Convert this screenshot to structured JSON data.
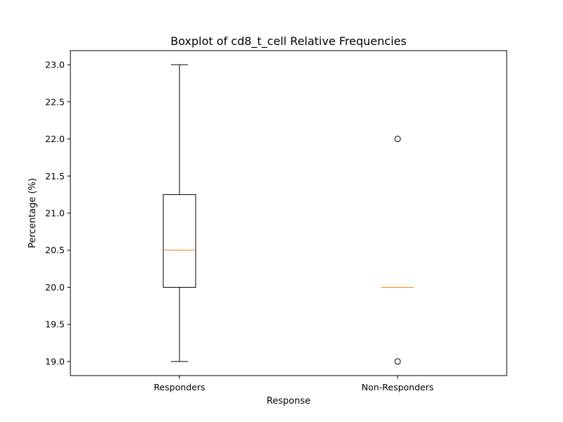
{
  "chart_data": {
    "type": "box",
    "title": "Boxplot of cd8_t_cell Relative Frequencies",
    "xlabel": "Response",
    "ylabel": "Percentage (%)",
    "categories": [
      "Responders",
      "Non-Responders"
    ],
    "ylim": [
      18.81,
      23.19
    ],
    "yticks": [
      19.0,
      19.5,
      20.0,
      20.5,
      21.0,
      21.5,
      22.0,
      22.5,
      23.0
    ],
    "ytick_labels": [
      "19.0",
      "19.5",
      "20.0",
      "20.5",
      "21.0",
      "21.5",
      "22.0",
      "22.5",
      "23.0"
    ],
    "grid": false,
    "boxes": [
      {
        "category": "Responders",
        "whisker_low": 19.0,
        "q1": 20.0,
        "median": 20.5,
        "q3": 21.25,
        "whisker_high": 23.0,
        "outliers": []
      },
      {
        "category": "Non-Responders",
        "whisker_low": 20.0,
        "q1": 20.0,
        "median": 20.0,
        "q3": 20.0,
        "whisker_high": 20.0,
        "outliers": [
          19.0,
          22.0
        ]
      }
    ],
    "colors": {
      "box": "#000000",
      "median": "#ff7f0e",
      "outlier": "#000000"
    }
  }
}
